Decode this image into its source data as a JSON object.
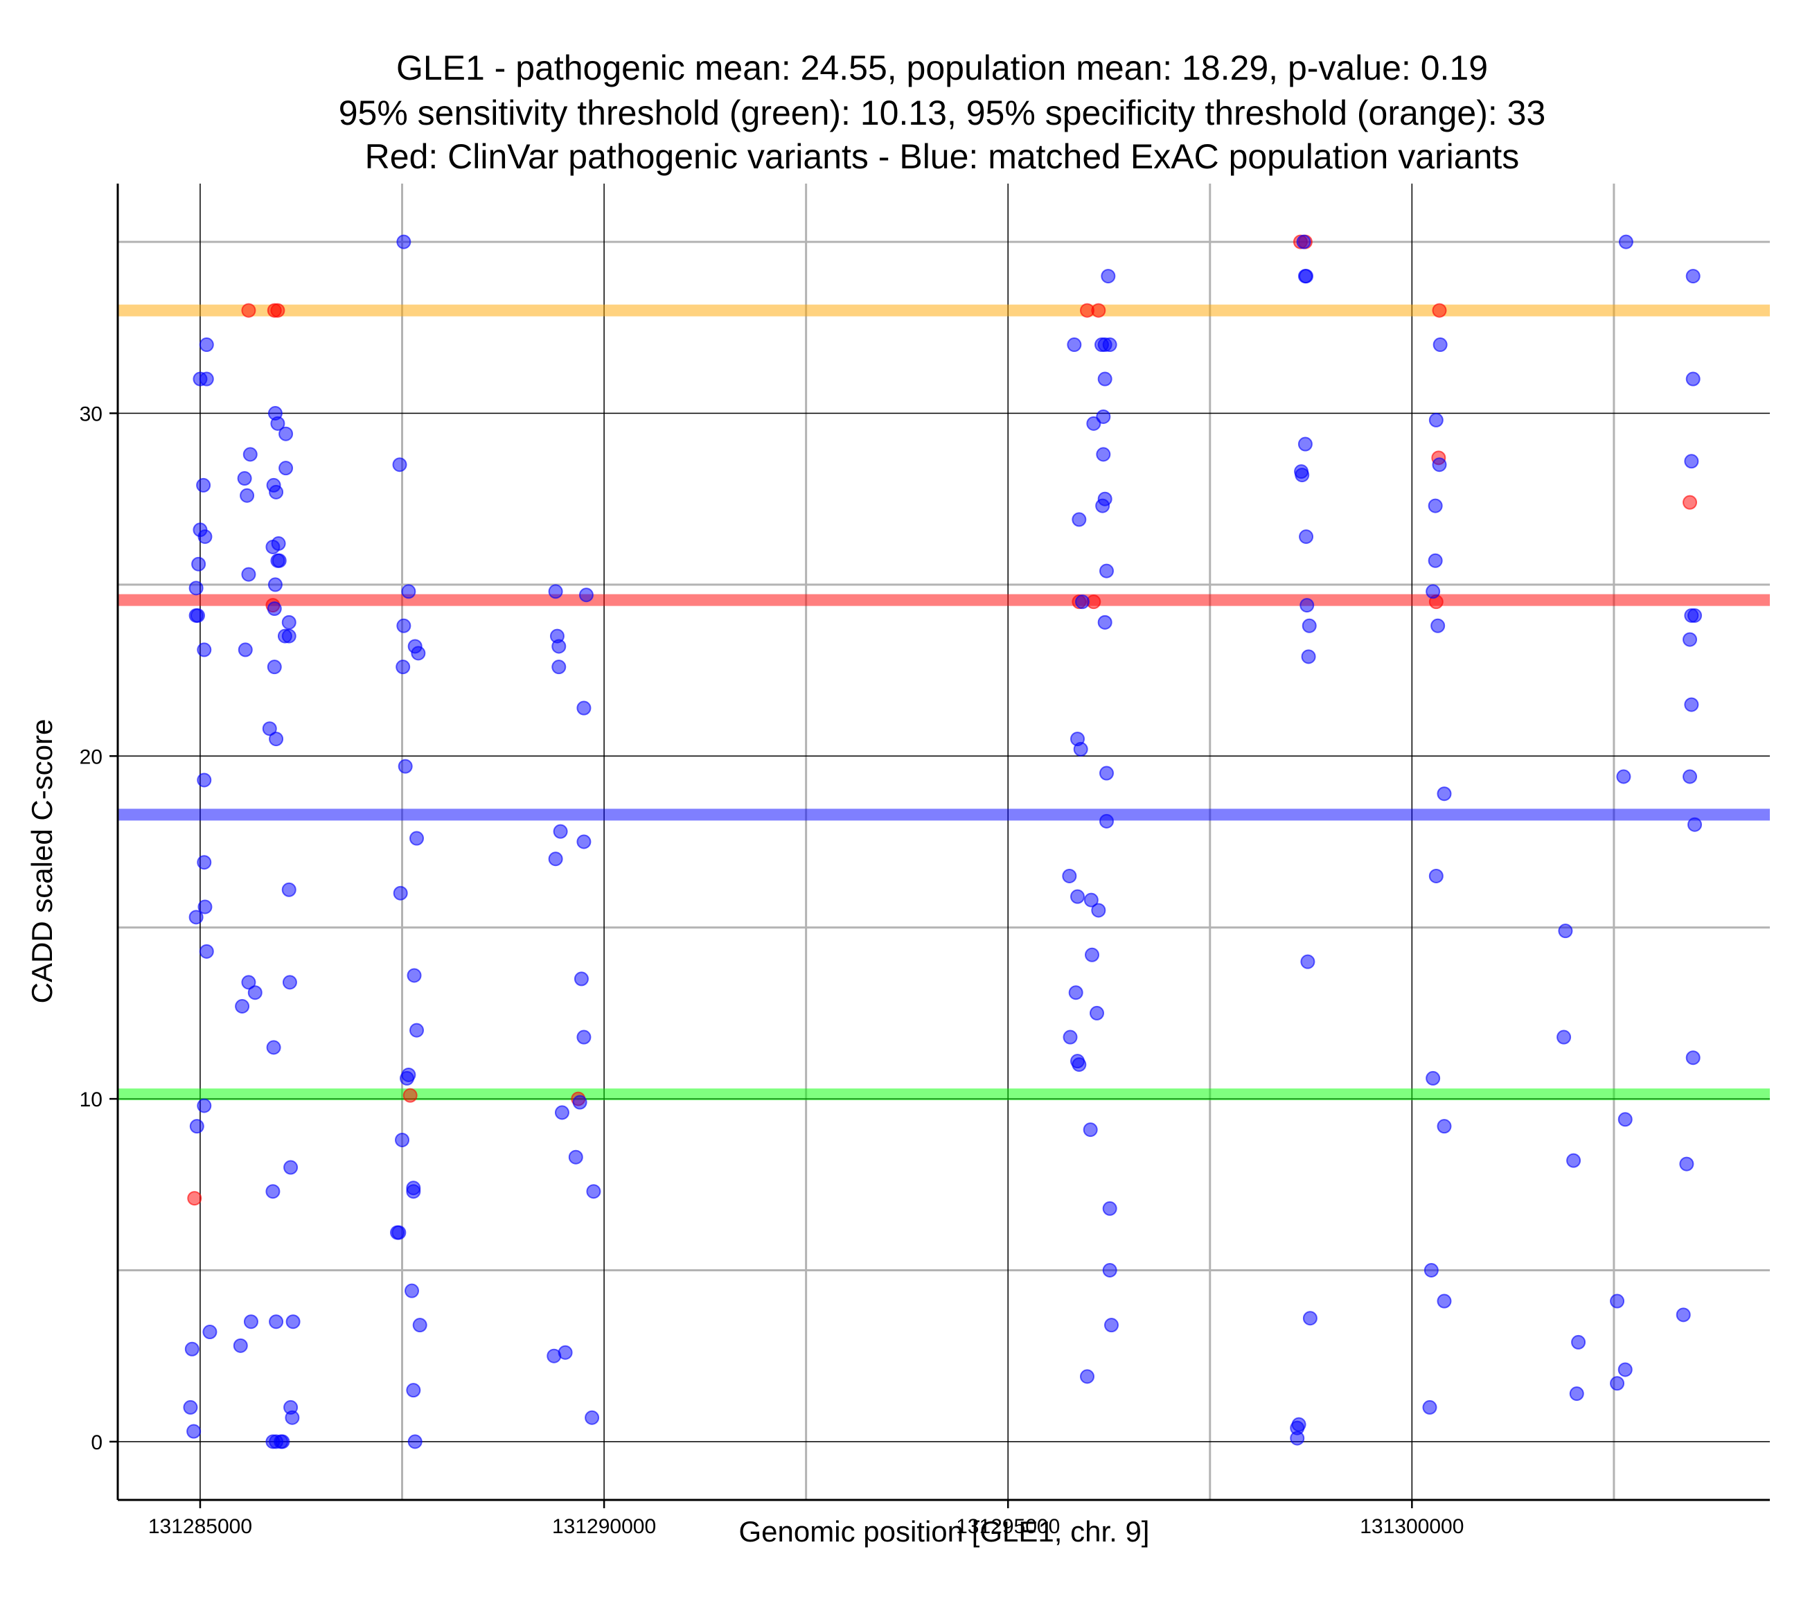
{
  "chart_data": {
    "type": "scatter",
    "title_lines": [
      "GLE1 - pathogenic mean: 24.55, population mean: 18.29, p-value: 0.19",
      "95% sensitivity threshold (green): 10.13, 95% specificity threshold (orange): 33",
      "Red: ClinVar pathogenic variants - Blue: matched ExAC population variants"
    ],
    "xlabel": "Genomic position [GLE1, chr. 9]",
    "ylabel": "CADD scaled C-score",
    "xlim": [
      131283980,
      131304430
    ],
    "ylim": [
      -1.7,
      36.7
    ],
    "x_ticks": [
      131285000,
      131290000,
      131295000,
      131300000
    ],
    "x_minor": [
      131287500,
      131292500,
      131297500,
      131302500
    ],
    "y_ticks": [
      0,
      10,
      20,
      30
    ],
    "y_minor": [
      5,
      15,
      25,
      35
    ],
    "grid": true,
    "hlines": [
      {
        "y": 33,
        "color": "#ffa500"
      },
      {
        "y": 24.55,
        "color": "#ff0000"
      },
      {
        "y": 18.29,
        "color": "#0000ff"
      },
      {
        "y": 10.13,
        "color": "#00ff00"
      }
    ],
    "series": [
      {
        "color": "#ff0000",
        "points": [
          [
            131284930,
            7.1
          ],
          [
            131285600,
            33
          ],
          [
            131285920,
            33
          ],
          [
            131285960,
            33
          ],
          [
            131285900,
            24.4
          ],
          [
            131287600,
            10.1
          ],
          [
            131289680,
            10.0
          ],
          [
            131295980,
            33
          ],
          [
            131296120,
            33
          ],
          [
            131295880,
            24.5
          ],
          [
            131296060,
            24.5
          ],
          [
            131298620,
            35
          ],
          [
            131298680,
            35
          ],
          [
            131300340,
            33
          ],
          [
            131300330,
            28.7
          ],
          [
            131300300,
            24.5
          ],
          [
            131303440,
            27.4
          ]
        ]
      },
      {
        "color": "#0000ff",
        "points": [
          [
            131284900,
            2.7
          ],
          [
            131284880,
            1.0
          ],
          [
            131284920,
            0.3
          ],
          [
            131284960,
            9.2
          ],
          [
            131285050,
            9.8
          ],
          [
            131284950,
            15.3
          ],
          [
            131285080,
            14.3
          ],
          [
            131285060,
            15.6
          ],
          [
            131285050,
            16.9
          ],
          [
            131285050,
            19.3
          ],
          [
            131285050,
            23.1
          ],
          [
            131284950,
            24.1
          ],
          [
            131284970,
            24.1
          ],
          [
            131284950,
            24.9
          ],
          [
            131284980,
            25.6
          ],
          [
            131285000,
            26.6
          ],
          [
            131285060,
            26.4
          ],
          [
            131285040,
            27.9
          ],
          [
            131285000,
            31.0
          ],
          [
            131285080,
            31.0
          ],
          [
            131285080,
            32.0
          ],
          [
            131285120,
            3.2
          ],
          [
            131285500,
            2.8
          ],
          [
            131285630,
            3.5
          ],
          [
            131285520,
            12.7
          ],
          [
            131285600,
            13.4
          ],
          [
            131285680,
            13.1
          ],
          [
            131285560,
            23.1
          ],
          [
            131285600,
            25.3
          ],
          [
            131285580,
            27.6
          ],
          [
            131285550,
            28.1
          ],
          [
            131285620,
            28.8
          ],
          [
            131285900,
            0.0
          ],
          [
            131285940,
            0.0
          ],
          [
            131286000,
            0.0
          ],
          [
            131286020,
            0.0
          ],
          [
            131286140,
            0.7
          ],
          [
            131286120,
            1.0
          ],
          [
            131286150,
            3.5
          ],
          [
            131285940,
            3.5
          ],
          [
            131285900,
            7.3
          ],
          [
            131286120,
            8.0
          ],
          [
            131285910,
            11.5
          ],
          [
            131286110,
            13.4
          ],
          [
            131286100,
            16.1
          ],
          [
            131285860,
            20.8
          ],
          [
            131285940,
            20.5
          ],
          [
            131285920,
            22.6
          ],
          [
            131286050,
            23.5
          ],
          [
            131286100,
            23.5
          ],
          [
            131286100,
            23.9
          ],
          [
            131285920,
            24.3
          ],
          [
            131285930,
            25.0
          ],
          [
            131285960,
            25.7
          ],
          [
            131285980,
            25.7
          ],
          [
            131285900,
            26.1
          ],
          [
            131285970,
            26.2
          ],
          [
            131285940,
            27.7
          ],
          [
            131285910,
            27.9
          ],
          [
            131286060,
            28.4
          ],
          [
            131285960,
            29.7
          ],
          [
            131285930,
            30.0
          ],
          [
            131286060,
            29.4
          ],
          [
            131287440,
            6.1
          ],
          [
            131287460,
            6.1
          ],
          [
            131287500,
            8.8
          ],
          [
            131287560,
            10.6
          ],
          [
            131287580,
            10.7
          ],
          [
            131287640,
            7.3
          ],
          [
            131287640,
            7.4
          ],
          [
            131287620,
            4.4
          ],
          [
            131287640,
            1.5
          ],
          [
            131287660,
            0.0
          ],
          [
            131287720,
            3.4
          ],
          [
            131287680,
            12.0
          ],
          [
            131287650,
            13.6
          ],
          [
            131287480,
            16.0
          ],
          [
            131287540,
            19.7
          ],
          [
            131287680,
            17.6
          ],
          [
            131287510,
            22.6
          ],
          [
            131287700,
            23.0
          ],
          [
            131287660,
            23.2
          ],
          [
            131287520,
            23.8
          ],
          [
            131287580,
            24.8
          ],
          [
            131287470,
            28.5
          ],
          [
            131287520,
            35.0
          ],
          [
            131289380,
            2.5
          ],
          [
            131289520,
            2.6
          ],
          [
            131289480,
            9.6
          ],
          [
            131289650,
            8.3
          ],
          [
            131289700,
            9.9
          ],
          [
            131289750,
            11.8
          ],
          [
            131289720,
            13.5
          ],
          [
            131289850,
            0.7
          ],
          [
            131289870,
            7.3
          ],
          [
            131289400,
            17.0
          ],
          [
            131289460,
            17.8
          ],
          [
            131289750,
            17.5
          ],
          [
            131289750,
            21.4
          ],
          [
            131289440,
            22.6
          ],
          [
            131289440,
            23.2
          ],
          [
            131289420,
            23.5
          ],
          [
            131289400,
            24.8
          ],
          [
            131289780,
            24.7
          ],
          [
            131295770,
            11.8
          ],
          [
            131295860,
            11.1
          ],
          [
            131295880,
            11.0
          ],
          [
            131295840,
            13.1
          ],
          [
            131295760,
            16.5
          ],
          [
            131295860,
            15.9
          ],
          [
            131295900,
            20.2
          ],
          [
            131295860,
            20.5
          ],
          [
            131295880,
            26.9
          ],
          [
            131295820,
            32.0
          ],
          [
            131295980,
            1.9
          ],
          [
            131296020,
            9.1
          ],
          [
            131296040,
            14.2
          ],
          [
            131296030,
            15.8
          ],
          [
            131296120,
            15.5
          ],
          [
            131296100,
            12.5
          ],
          [
            131296260,
            6.8
          ],
          [
            131296260,
            5.0
          ],
          [
            131296280,
            3.4
          ],
          [
            131296220,
            18.1
          ],
          [
            131296220,
            19.5
          ],
          [
            131296200,
            23.9
          ],
          [
            131296220,
            25.4
          ],
          [
            131296170,
            27.3
          ],
          [
            131296200,
            27.5
          ],
          [
            131296180,
            28.8
          ],
          [
            131296060,
            29.7
          ],
          [
            131296180,
            29.9
          ],
          [
            131296200,
            31.0
          ],
          [
            131296160,
            32.0
          ],
          [
            131296200,
            32.0
          ],
          [
            131296260,
            32.0
          ],
          [
            131296240,
            34.0
          ],
          [
            131295920,
            24.5
          ],
          [
            131298580,
            0.1
          ],
          [
            131298580,
            0.4
          ],
          [
            131298600,
            0.5
          ],
          [
            131298740,
            3.6
          ],
          [
            131298710,
            14.0
          ],
          [
            131298720,
            22.9
          ],
          [
            131298730,
            23.8
          ],
          [
            131298700,
            24.4
          ],
          [
            131298690,
            26.4
          ],
          [
            131298640,
            28.2
          ],
          [
            131298630,
            28.3
          ],
          [
            131298680,
            29.1
          ],
          [
            131298680,
            34.0
          ],
          [
            131298690,
            34.0
          ],
          [
            131298660,
            35.0
          ],
          [
            131300220,
            1.0
          ],
          [
            131300240,
            5.0
          ],
          [
            131300260,
            10.6
          ],
          [
            131300400,
            4.1
          ],
          [
            131300400,
            9.2
          ],
          [
            131300300,
            16.5
          ],
          [
            131300400,
            18.9
          ],
          [
            131300320,
            23.8
          ],
          [
            131300260,
            24.8
          ],
          [
            131300290,
            25.7
          ],
          [
            131300290,
            27.3
          ],
          [
            131300340,
            28.5
          ],
          [
            131300300,
            29.8
          ],
          [
            131300350,
            32.0
          ],
          [
            131301880,
            11.8
          ],
          [
            131301900,
            14.9
          ],
          [
            131302000,
            8.2
          ],
          [
            131302040,
            1.4
          ],
          [
            131302060,
            2.9
          ],
          [
            131302540,
            1.7
          ],
          [
            131302540,
            4.1
          ],
          [
            131302640,
            2.1
          ],
          [
            131302640,
            9.4
          ],
          [
            131302620,
            19.4
          ],
          [
            131302650,
            35.0
          ],
          [
            131303360,
            3.7
          ],
          [
            131303400,
            8.1
          ],
          [
            131303480,
            11.2
          ],
          [
            131303500,
            18.0
          ],
          [
            131303440,
            19.4
          ],
          [
            131303460,
            21.5
          ],
          [
            131303440,
            23.4
          ],
          [
            131303460,
            24.1
          ],
          [
            131303500,
            24.1
          ],
          [
            131303460,
            28.6
          ],
          [
            131303480,
            31.0
          ],
          [
            131303480,
            34.0
          ]
        ]
      }
    ]
  }
}
